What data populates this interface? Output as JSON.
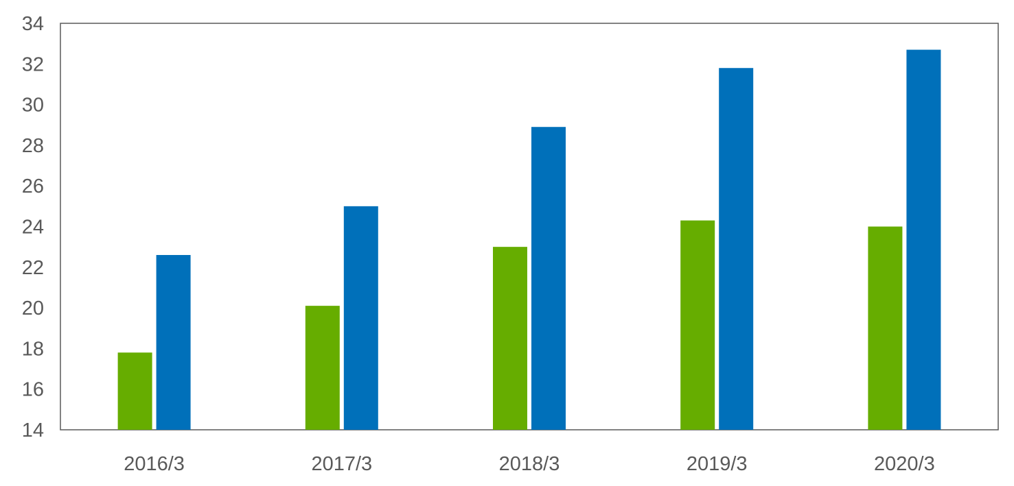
{
  "chart_data": {
    "type": "bar",
    "title": "",
    "xlabel": "",
    "ylabel": "",
    "categories": [
      "2016/3",
      "2017/3",
      "2018/3",
      "2019/3",
      "2020/3"
    ],
    "ylim": [
      14,
      34
    ],
    "yticks": [
      14,
      16,
      18,
      20,
      22,
      24,
      26,
      28,
      30,
      32,
      34
    ],
    "grid": false,
    "legend": "none",
    "series": [
      {
        "values": [
          17.8,
          20.1,
          23.0,
          24.3,
          24.0
        ],
        "color": "#66AD00"
      },
      {
        "values": [
          22.6,
          25.0,
          28.9,
          31.8,
          32.7
        ],
        "color": "#0070BA"
      }
    ]
  }
}
